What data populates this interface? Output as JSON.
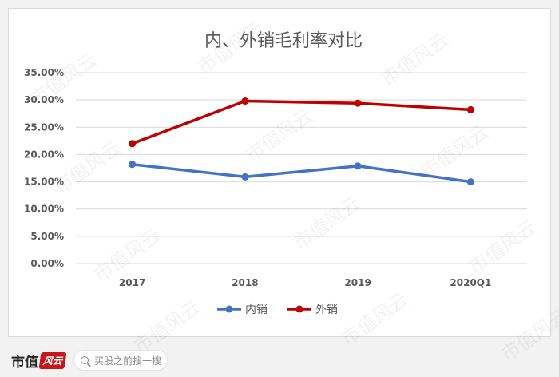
{
  "footer": {
    "brand": "市值",
    "brand_seal": "风云",
    "search_placeholder": "买股之前搜一搜"
  },
  "watermark_text": "市值风云",
  "colors": {
    "domestic": "#4472c4",
    "foreign": "#c00000",
    "grid": "#d9d9d9",
    "text": "#595959"
  },
  "chart_data": {
    "type": "line",
    "title": "内、外销毛利率对比",
    "categories": [
      "2017",
      "2018",
      "2019",
      "2020Q1"
    ],
    "series": [
      {
        "name": "内销",
        "values": [
          18.2,
          15.9,
          17.9,
          15.0
        ]
      },
      {
        "name": "外销",
        "values": [
          22.0,
          29.8,
          29.4,
          28.2
        ]
      }
    ],
    "ylim": [
      0,
      35
    ],
    "yticks": [
      "0.00%",
      "5.00%",
      "10.00%",
      "15.00%",
      "20.00%",
      "25.00%",
      "30.00%",
      "35.00%"
    ],
    "grid": true,
    "legend_position": "bottom"
  }
}
